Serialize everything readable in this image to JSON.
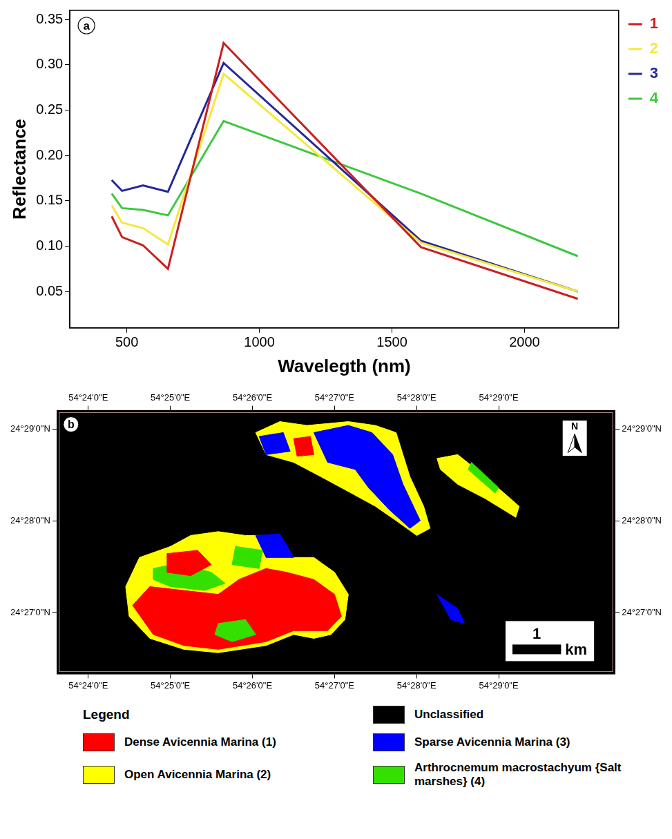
{
  "chart_data": [
    {
      "type": "line",
      "panel_label": "a",
      "x_label": "Wavelegth (nm)",
      "y_label": "Reflectance",
      "x": [
        443,
        482,
        561,
        655,
        865,
        1609,
        2201
      ],
      "series": [
        {
          "name": "1",
          "color": "#cc1f1f",
          "values": [
            0.133,
            0.11,
            0.101,
            0.075,
            0.324,
            0.099,
            0.042
          ]
        },
        {
          "name": "2",
          "color": "#f5e83a",
          "values": [
            0.145,
            0.126,
            0.12,
            0.102,
            0.29,
            0.104,
            0.05
          ]
        },
        {
          "name": "3",
          "color": "#25279a",
          "values": [
            0.173,
            0.161,
            0.167,
            0.16,
            0.302,
            0.106,
            0.05
          ]
        },
        {
          "name": "4",
          "color": "#3ec83e",
          "values": [
            0.158,
            0.142,
            0.14,
            0.134,
            0.238,
            0.158,
            0.089
          ]
        }
      ],
      "xlim": [
        285,
        2355
      ],
      "xticks": [
        500,
        1000,
        1500,
        2000
      ],
      "ylim": [
        0.01,
        0.36
      ],
      "yticks": [
        0.05,
        {
          "value": 0.1,
          "label": "0.10"
        },
        0.15,
        {
          "value": 0.2,
          "label": "0.20"
        },
        0.25,
        {
          "value": 0.3,
          "label": "0.30"
        },
        0.35
      ],
      "grid": false,
      "legend": "right"
    },
    {
      "type": "map",
      "panel_label": "b",
      "legend_title": "Legend",
      "north_arrow": "N",
      "scale_bar": {
        "value": 1,
        "unit": "km"
      },
      "xlim": [
        54.3937,
        54.5069
      ],
      "xticks": [
        {
          "value": 54.4,
          "label": "54°24'0\"E"
        },
        {
          "value": 54.416667,
          "label": "54°25'0\"E"
        },
        {
          "value": 54.433333,
          "label": "54°26'0\"E"
        },
        {
          "value": 54.45,
          "label": "54°27'0\"E"
        },
        {
          "value": 54.466667,
          "label": "54°28'0\"E"
        },
        {
          "value": 54.483333,
          "label": "54°29'0\"E"
        }
      ],
      "ylim": [
        24.4389,
        24.4867
      ],
      "yticks": [
        {
          "value": 24.45,
          "label": "24°27'0\"N"
        },
        {
          "value": 24.466667,
          "label": "24°28'0\"N"
        },
        {
          "value": 24.483333,
          "label": "24°29'0\"N"
        }
      ],
      "legend": "bottom",
      "series": [
        {
          "name": "Dense Avicennia Marina (1)",
          "color": "#ff0000",
          "polygons": [
            [
              [
                54.409,
                24.4513
              ],
              [
                54.4125,
                24.4547
              ],
              [
                54.4194,
                24.454
              ],
              [
                54.4264,
                24.4533
              ],
              [
                54.4306,
                24.456
              ],
              [
                54.4361,
                24.458
              ],
              [
                54.4403,
                24.4573
              ],
              [
                54.4458,
                24.456
              ],
              [
                54.45,
                24.4533
              ],
              [
                54.4514,
                24.4493
              ],
              [
                54.4486,
                24.4467
              ],
              [
                54.4417,
                24.4467
              ],
              [
                54.4361,
                24.4447
              ],
              [
                54.4264,
                24.4433
              ],
              [
                54.4194,
                24.444
              ],
              [
                54.4132,
                24.446
              ]
            ],
            [
              [
                54.416,
                24.4607
              ],
              [
                54.4222,
                24.4613
              ],
              [
                54.425,
                24.4587
              ],
              [
                54.4208,
                24.4567
              ],
              [
                54.416,
                24.4573
              ]
            ],
            [
              [
                54.4417,
                24.4816
              ],
              [
                54.4451,
                24.482
              ],
              [
                54.4458,
                24.4787
              ],
              [
                54.4424,
                24.4784
              ]
            ]
          ]
        },
        {
          "name": "Open Avicennia Marina (2)",
          "color": "#ffff00",
          "polygons": [
            [
              [
                54.4076,
                24.4547
              ],
              [
                54.4104,
                24.46
              ],
              [
                54.4167,
                24.462
              ],
              [
                54.4208,
                24.464
              ],
              [
                54.4264,
                24.4647
              ],
              [
                54.4319,
                24.464
              ],
              [
                54.4389,
                24.464
              ],
              [
                54.4417,
                24.46
              ],
              [
                54.4458,
                24.46
              ],
              [
                54.45,
                24.4573
              ],
              [
                54.4528,
                24.4533
              ],
              [
                54.4521,
                24.4487
              ],
              [
                54.4493,
                24.446
              ],
              [
                54.4458,
                24.4453
              ],
              [
                54.4417,
                24.446
              ],
              [
                54.4361,
                24.444
              ],
              [
                54.4264,
                24.4427
              ],
              [
                54.4194,
                24.4433
              ],
              [
                54.4125,
                24.4453
              ],
              [
                54.4083,
                24.4493
              ]
            ],
            [
              [
                54.434,
                24.4827
              ],
              [
                54.4389,
                24.4847
              ],
              [
                54.4444,
                24.484
              ],
              [
                54.4528,
                24.4847
              ],
              [
                54.4583,
                24.484
              ],
              [
                54.4625,
                24.4827
              ],
              [
                54.4639,
                24.4787
              ],
              [
                54.4653,
                24.4747
              ],
              [
                54.4681,
                24.4693
              ],
              [
                54.4694,
                24.4653
              ],
              [
                54.4667,
                24.464
              ],
              [
                54.4625,
                24.4667
              ],
              [
                54.4583,
                24.4693
              ],
              [
                54.4528,
                24.472
              ],
              [
                54.4472,
                24.4747
              ],
              [
                54.4417,
                24.4773
              ],
              [
                54.4361,
                24.4787
              ]
            ],
            [
              [
                54.4708,
                24.478
              ],
              [
                54.475,
                24.4787
              ],
              [
                54.4806,
                24.4747
              ],
              [
                54.4875,
                24.4693
              ],
              [
                54.4868,
                24.4673
              ],
              [
                54.4806,
                24.4707
              ],
              [
                54.475,
                24.4733
              ],
              [
                54.4715,
                24.476
              ]
            ]
          ]
        },
        {
          "name": "Sparse Avicennia Marina (3)",
          "color": "#0000ff",
          "polygons": [
            [
              [
                54.4458,
                24.4827
              ],
              [
                54.4528,
                24.484
              ],
              [
                54.4576,
                24.4827
              ],
              [
                54.4618,
                24.4787
              ],
              [
                54.4639,
                24.4733
              ],
              [
                54.4674,
                24.4667
              ],
              [
                54.4653,
                24.4653
              ],
              [
                54.4611,
                24.4687
              ],
              [
                54.4569,
                24.4727
              ],
              [
                54.4542,
                24.476
              ],
              [
                54.4486,
                24.4773
              ]
            ],
            [
              [
                54.4347,
                24.482
              ],
              [
                54.4396,
                24.4827
              ],
              [
                54.441,
                24.4793
              ],
              [
                54.4361,
                24.4787
              ]
            ],
            [
              [
                54.434,
                24.464
              ],
              [
                54.4389,
                24.4643
              ],
              [
                54.4417,
                24.46
              ],
              [
                54.4361,
                24.46
              ]
            ],
            [
              [
                54.4708,
                24.4533
              ],
              [
                54.475,
                24.4507
              ],
              [
                54.4764,
                24.448
              ],
              [
                54.4736,
                24.4487
              ]
            ]
          ]
        },
        {
          "name": "Arthrocnemum macrostachyum {Salt marshes} (4)",
          "color": "#33e000",
          "polygons": [
            [
              [
                54.4132,
                24.458
              ],
              [
                54.4181,
                24.4589
              ],
              [
                54.425,
                24.4573
              ],
              [
                54.4278,
                24.4553
              ],
              [
                54.4236,
                24.454
              ],
              [
                54.4167,
                24.4547
              ],
              [
                54.4132,
                24.456
              ]
            ],
            [
              [
                54.4264,
                24.448
              ],
              [
                54.4319,
                24.4487
              ],
              [
                54.434,
                24.446
              ],
              [
                54.4292,
                24.4447
              ],
              [
                54.4257,
                24.446
              ]
            ],
            [
              [
                54.4299,
                24.462
              ],
              [
                54.4354,
                24.4613
              ],
              [
                54.4347,
                24.458
              ],
              [
                54.4292,
                24.4587
              ]
            ],
            [
              [
                54.4778,
                24.4773
              ],
              [
                54.4833,
                24.4727
              ],
              [
                54.4826,
                24.4717
              ],
              [
                54.4771,
                24.476
              ]
            ]
          ]
        },
        {
          "name": "Unclassified",
          "color": "#000000",
          "polygons": []
        }
      ]
    }
  ]
}
